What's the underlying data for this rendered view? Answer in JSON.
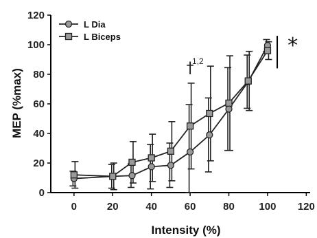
{
  "chart_data": {
    "type": "line",
    "xlabel": "Intensity (%)",
    "ylabel": "MEP (%max)",
    "xlim": [
      -12,
      122
    ],
    "ylim": [
      0,
      120
    ],
    "xticks": [
      0,
      20,
      40,
      60,
      80,
      100,
      120
    ],
    "yticks": [
      0,
      20,
      40,
      60,
      80,
      100,
      120
    ],
    "grid": false,
    "legend_position": "top-left",
    "series": [
      {
        "name": "L Dia",
        "marker": "circle",
        "color": "#9a9a9a",
        "x": [
          0,
          20,
          30,
          40,
          50,
          60,
          70,
          80,
          90,
          100
        ],
        "y": [
          9.5,
          11,
          11.5,
          17.5,
          18.5,
          27.5,
          39,
          56.5,
          75,
          99.5
        ],
        "err_low": [
          5,
          8,
          8,
          15,
          15,
          32,
          25,
          28,
          18,
          4
        ],
        "err_high": [
          5,
          8,
          8,
          15,
          15,
          32,
          25,
          28,
          18,
          4
        ]
      },
      {
        "name": "L Biceps",
        "marker": "square",
        "color": "#9a9a9a",
        "x": [
          0,
          20,
          30,
          40,
          50,
          60,
          70,
          80,
          90,
          100
        ],
        "y": [
          12,
          11,
          20.5,
          23.5,
          28,
          45,
          53.5,
          60.5,
          75.5,
          96
        ],
        "err_low": [
          9,
          9,
          14,
          16,
          20,
          29,
          32,
          32,
          20,
          6
        ],
        "err_high": [
          9,
          9,
          14,
          16,
          20,
          29,
          32,
          32,
          20,
          6
        ]
      }
    ],
    "annotations": [
      {
        "text": "†",
        "x": 60,
        "y": 81
      },
      {
        "text": "1,2",
        "x": 64,
        "y": 87
      },
      {
        "text": "*",
        "x": 113,
        "y": 95
      }
    ],
    "significance_bar": {
      "x": 105,
      "y_from": 84,
      "y_to": 106
    }
  }
}
